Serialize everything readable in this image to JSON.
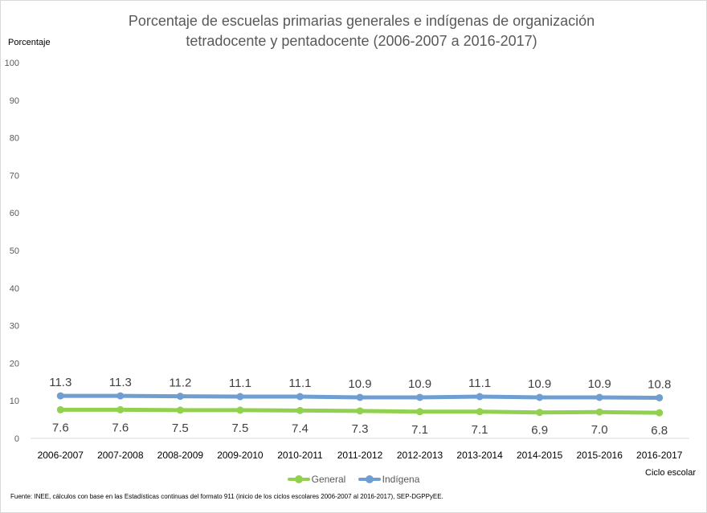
{
  "chart_data": {
    "type": "line",
    "title_lines": [
      "Porcentaje de escuelas primarias  generales e indígenas de organización",
      "tetradocente y pentadocente  (2006-2007 a 2016-2017)"
    ],
    "ylabel": "Porcentaje",
    "xlabel": "Ciclo escolar",
    "ylim": [
      0,
      100
    ],
    "yticks": [
      0,
      10,
      20,
      30,
      40,
      50,
      60,
      70,
      80,
      90,
      100
    ],
    "categories": [
      "2006-2007",
      "2007-2008",
      "2008-2009",
      "2009-2010",
      "2010-2011",
      "2011-2012",
      "2012-2013",
      "2013-2014",
      "2014-2015",
      "2015-2016",
      "2016-2017"
    ],
    "series": [
      {
        "name": "General",
        "color": "#92d050",
        "values": [
          7.6,
          7.6,
          7.5,
          7.5,
          7.4,
          7.3,
          7.1,
          7.1,
          6.9,
          7.0,
          6.8
        ],
        "labels": [
          "7.6",
          "7.6",
          "7.5",
          "7.5",
          "7.4",
          "7.3",
          "7.1",
          "7.1",
          "6.9",
          "7.0",
          "6.8"
        ],
        "label_position": "below"
      },
      {
        "name": "Indígena",
        "color": "#6f9fd0",
        "values": [
          11.3,
          11.3,
          11.2,
          11.1,
          11.1,
          10.9,
          10.9,
          11.1,
          10.9,
          10.9,
          10.8
        ],
        "labels": [
          "11.3",
          "11.3",
          "11.2",
          "11.1",
          "11.1",
          "10.9",
          "10.9",
          "11.1",
          "10.9",
          "10.9",
          "10.8"
        ],
        "label_position": "above"
      }
    ],
    "grid": false,
    "legend": "bottom",
    "source": "Fuente: INEE, cálculos con base en las Estadísticas continuas del formato 911 (inicio de los ciclos escolares 2006-2007 al 2016-2017), SEP-DGPPyEE."
  }
}
